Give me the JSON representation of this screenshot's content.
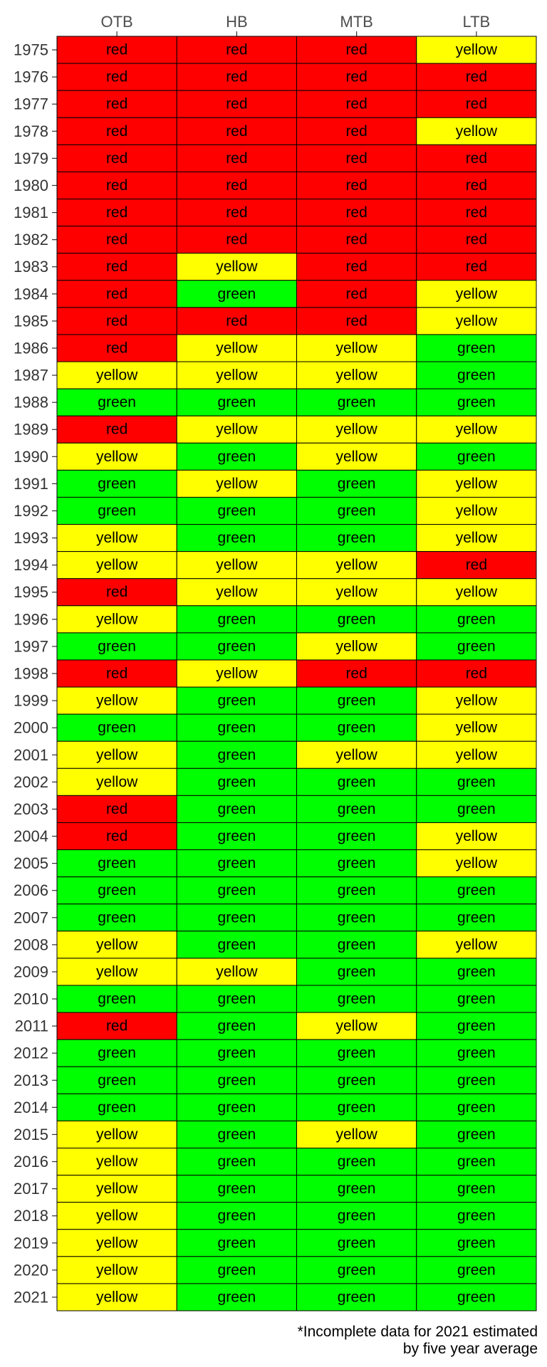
{
  "chart_data": {
    "type": "heatmap",
    "columns": [
      "OTB",
      "HB",
      "MTB",
      "LTB"
    ],
    "rows": [
      "1975",
      "1976",
      "1977",
      "1978",
      "1979",
      "1980",
      "1981",
      "1982",
      "1983",
      "1984",
      "1985",
      "1986",
      "1987",
      "1988",
      "1989",
      "1990",
      "1991",
      "1992",
      "1993",
      "1994",
      "1995",
      "1996",
      "1997",
      "1998",
      "1999",
      "2000",
      "2001",
      "2002",
      "2003",
      "2004",
      "2005",
      "2006",
      "2007",
      "2008",
      "2009",
      "2010",
      "2011",
      "2012",
      "2013",
      "2014",
      "2015",
      "2016",
      "2017",
      "2018",
      "2019",
      "2020",
      "2021"
    ],
    "values": [
      [
        "red",
        "red",
        "red",
        "yellow"
      ],
      [
        "red",
        "red",
        "red",
        "red"
      ],
      [
        "red",
        "red",
        "red",
        "red"
      ],
      [
        "red",
        "red",
        "red",
        "yellow"
      ],
      [
        "red",
        "red",
        "red",
        "red"
      ],
      [
        "red",
        "red",
        "red",
        "red"
      ],
      [
        "red",
        "red",
        "red",
        "red"
      ],
      [
        "red",
        "red",
        "red",
        "red"
      ],
      [
        "red",
        "yellow",
        "red",
        "red"
      ],
      [
        "red",
        "green",
        "red",
        "yellow"
      ],
      [
        "red",
        "red",
        "red",
        "yellow"
      ],
      [
        "red",
        "yellow",
        "yellow",
        "green"
      ],
      [
        "yellow",
        "yellow",
        "yellow",
        "green"
      ],
      [
        "green",
        "green",
        "green",
        "green"
      ],
      [
        "red",
        "yellow",
        "yellow",
        "yellow"
      ],
      [
        "yellow",
        "green",
        "yellow",
        "green"
      ],
      [
        "green",
        "yellow",
        "green",
        "yellow"
      ],
      [
        "green",
        "green",
        "green",
        "yellow"
      ],
      [
        "yellow",
        "green",
        "green",
        "yellow"
      ],
      [
        "yellow",
        "yellow",
        "yellow",
        "red"
      ],
      [
        "red",
        "yellow",
        "yellow",
        "yellow"
      ],
      [
        "yellow",
        "green",
        "green",
        "green"
      ],
      [
        "green",
        "green",
        "yellow",
        "green"
      ],
      [
        "red",
        "yellow",
        "red",
        "red"
      ],
      [
        "yellow",
        "green",
        "green",
        "yellow"
      ],
      [
        "green",
        "green",
        "green",
        "yellow"
      ],
      [
        "yellow",
        "green",
        "yellow",
        "yellow"
      ],
      [
        "yellow",
        "green",
        "green",
        "green"
      ],
      [
        "red",
        "green",
        "green",
        "green"
      ],
      [
        "red",
        "green",
        "green",
        "yellow"
      ],
      [
        "green",
        "green",
        "green",
        "yellow"
      ],
      [
        "green",
        "green",
        "green",
        "green"
      ],
      [
        "green",
        "green",
        "green",
        "green"
      ],
      [
        "yellow",
        "green",
        "green",
        "yellow"
      ],
      [
        "yellow",
        "yellow",
        "green",
        "green"
      ],
      [
        "green",
        "green",
        "green",
        "green"
      ],
      [
        "red",
        "green",
        "yellow",
        "green"
      ],
      [
        "green",
        "green",
        "green",
        "green"
      ],
      [
        "green",
        "green",
        "green",
        "green"
      ],
      [
        "green",
        "green",
        "green",
        "green"
      ],
      [
        "yellow",
        "green",
        "yellow",
        "green"
      ],
      [
        "yellow",
        "green",
        "green",
        "green"
      ],
      [
        "yellow",
        "green",
        "green",
        "green"
      ],
      [
        "yellow",
        "green",
        "green",
        "green"
      ],
      [
        "yellow",
        "green",
        "green",
        "green"
      ],
      [
        "yellow",
        "green",
        "green",
        "green"
      ],
      [
        "yellow",
        "green",
        "green",
        "green"
      ]
    ],
    "colors": {
      "red": "#ff0000",
      "yellow": "#ffff00",
      "green": "#00ff00"
    },
    "caption_lines": [
      "*Incomplete data for 2021 estimated",
      "by five year average"
    ]
  }
}
